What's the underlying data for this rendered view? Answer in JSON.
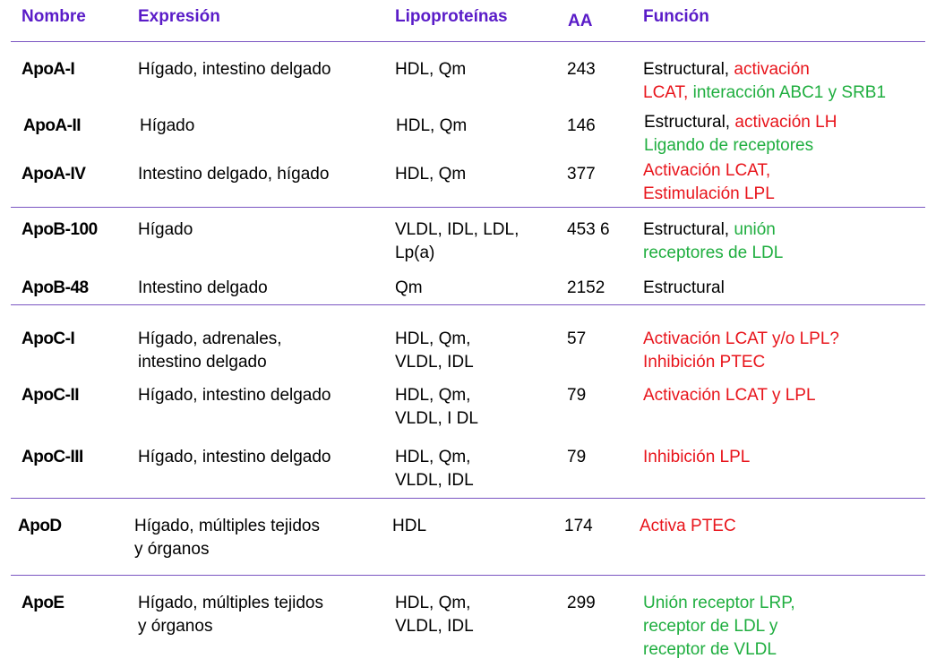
{
  "headers": {
    "name": "Nombre",
    "expression": "Expresión",
    "lipoproteins": "Lipoproteínas",
    "aa": "AA",
    "function": "Función"
  },
  "rows": [
    {
      "name": "ApoA-I",
      "expression": [
        "Hígado, intestino delgado"
      ],
      "lipoproteins": [
        "HDL, Qm"
      ],
      "aa": "243",
      "function": [
        [
          {
            "text": "Estructural, ",
            "color": "black"
          },
          {
            "text": "activación",
            "color": "red"
          }
        ],
        [
          {
            "text": "LCAT, ",
            "color": "red"
          },
          {
            "text": "interacción ABC1 y SRB1",
            "color": "green"
          }
        ]
      ]
    },
    {
      "name": "ApoA-II",
      "expression": [
        "Hígado"
      ],
      "lipoproteins": [
        "HDL, Qm"
      ],
      "aa": "146",
      "function": [
        [
          {
            "text": "Estructural, ",
            "color": "black"
          },
          {
            "text": "activación LH",
            "color": "red"
          }
        ],
        [
          {
            "text": "Ligando de receptores",
            "color": "green"
          }
        ]
      ]
    },
    {
      "name": "ApoA-IV",
      "expression": [
        "Intestino delgado, hígado"
      ],
      "lipoproteins": [
        "HDL, Qm"
      ],
      "aa": "377",
      "function": [
        [
          {
            "text": "Activación LCAT,",
            "color": "red"
          }
        ],
        [
          {
            "text": "Estimulación LPL",
            "color": "red"
          }
        ]
      ]
    },
    {
      "name": "ApoB-100",
      "expression": [
        "Hígado"
      ],
      "lipoproteins": [
        "VLDL, IDL, LDL,",
        "Lp(a)"
      ],
      "aa": "453 6",
      "function": [
        [
          {
            "text": "Estructural, ",
            "color": "black"
          },
          {
            "text": "unión",
            "color": "green"
          }
        ],
        [
          {
            "text": "receptores de LDL",
            "color": "green"
          }
        ]
      ]
    },
    {
      "name": "ApoB-48",
      "expression": [
        "Intestino delgado"
      ],
      "lipoproteins": [
        "Qm"
      ],
      "aa": "2152",
      "function": [
        [
          {
            "text": "Estructural",
            "color": "black"
          }
        ]
      ]
    },
    {
      "name": "ApoC-I",
      "expression": [
        "Hígado, adrenales,",
        "intestino delgado"
      ],
      "lipoproteins": [
        "HDL, Qm,",
        "VLDL, IDL"
      ],
      "aa": "57",
      "function": [
        [
          {
            "text": "Activación LCAT y/o LPL?",
            "color": "red"
          }
        ],
        [
          {
            "text": "Inhibición PTEC",
            "color": "red"
          }
        ]
      ]
    },
    {
      "name": "ApoC-II",
      "expression": [
        "Hígado, intestino delgado"
      ],
      "lipoproteins": [
        "HDL, Qm,",
        "VLDL, I DL"
      ],
      "aa": "79",
      "function": [
        [
          {
            "text": "Activación LCAT y LPL",
            "color": "red"
          }
        ]
      ]
    },
    {
      "name": "ApoC-III",
      "expression": [
        "Hígado, intestino delgado"
      ],
      "lipoproteins": [
        "HDL, Qm,",
        "VLDL, IDL"
      ],
      "aa": "79",
      "function": [
        [
          {
            "text": "Inhibición LPL",
            "color": "red"
          }
        ]
      ]
    },
    {
      "name": "ApoD",
      "expression": [
        "Hígado, múltiples tejidos",
        "y órganos"
      ],
      "lipoproteins": [
        "HDL"
      ],
      "aa": "174",
      "function": [
        [
          {
            "text": "Activa PTEC",
            "color": "red"
          }
        ]
      ]
    },
    {
      "name": "ApoE",
      "expression": [
        "Hígado, múltiples tejidos",
        "y órganos"
      ],
      "lipoproteins": [
        "HDL, Qm,",
        "VLDL, IDL"
      ],
      "aa": "299",
      "function": [
        [
          {
            "text": "Unión receptor LRP,",
            "color": "green"
          }
        ],
        [
          {
            "text": "receptor de LDL y",
            "color": "green"
          }
        ],
        [
          {
            "text": "receptor de VLDL",
            "color": "green"
          }
        ]
      ]
    }
  ]
}
